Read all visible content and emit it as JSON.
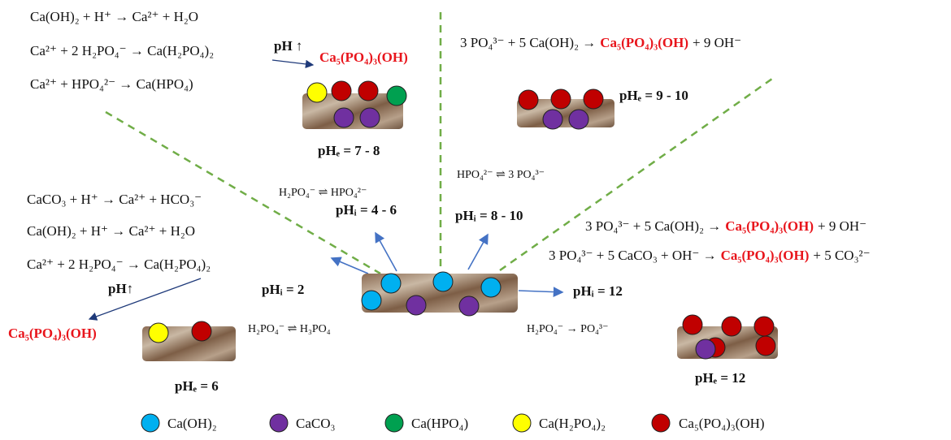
{
  "panels": {
    "top_left": {
      "reactions": [
        "Ca(OH)₂ + H⁺ → Ca²⁺ + H₂O",
        "Ca²⁺ + 2 H₂PO₄⁻ → Ca(H₂PO₄)₂",
        "Ca²⁺ + HPO₄²⁻ → Ca(HPO₄)"
      ],
      "trigger": "pH ↑",
      "product": "Ca₅(PO₄)₃(OH)",
      "label": "pHₑ = 7 - 8"
    },
    "top_right": {
      "reaction": {
        "left": "3 PO₄³⁻ + 5 Ca(OH)₂ →",
        "product": "Ca₅(PO₄)₃(OH)",
        "right": "+ 9 OH⁻"
      },
      "label": "pHₑ = 9 - 10"
    },
    "bottom_left": {
      "reactions": [
        "CaCO₃ + H⁺ → Ca²⁺ + HCO₃⁻",
        "Ca(OH)₂ + H⁺ → Ca²⁺ + H₂O",
        "Ca²⁺ + 2 H₂PO₄⁻ → Ca(H₂PO₄)₂"
      ],
      "trigger": "pH↑",
      "product": "Ca₅(PO₄)₃(OH)",
      "label": "pHₑ = 6"
    },
    "bottom_right": {
      "reactions": [
        {
          "left": "3 PO₄³⁻ + 5 Ca(OH)₂ →",
          "product": "Ca₅(PO₄)₃(OH)",
          "right": "+ 9 OH⁻"
        },
        {
          "left": "3 PO₄³⁻ + 5 CaCO₃ + OH⁻ →",
          "product": "Ca₅(PO₄)₃(OH)",
          "right": "+ 5 CO₃²⁻"
        }
      ],
      "label": "pHₑ = 12"
    }
  },
  "center": {
    "equilibria": [
      "H₂PO₄⁻ ⇌ HPO₄²⁻",
      "HPO₄²⁻ ⇌ 3 PO₄³⁻",
      "H₂PO₄⁻ ⇌ H₃PO₄",
      "H₂PO₄⁻ → PO₄³⁻"
    ],
    "ph_labels": [
      "pHᵢ = 4 - 6",
      "pHᵢ = 8 - 10",
      "pHᵢ = 2",
      "pHᵢ = 12"
    ]
  },
  "legend": [
    "Ca(OH)₂",
    "CaCO₃",
    "Ca(HPO₄)",
    "Ca(H₂PO₄)₂",
    "Ca₅(PO₄)₃(OH)"
  ]
}
